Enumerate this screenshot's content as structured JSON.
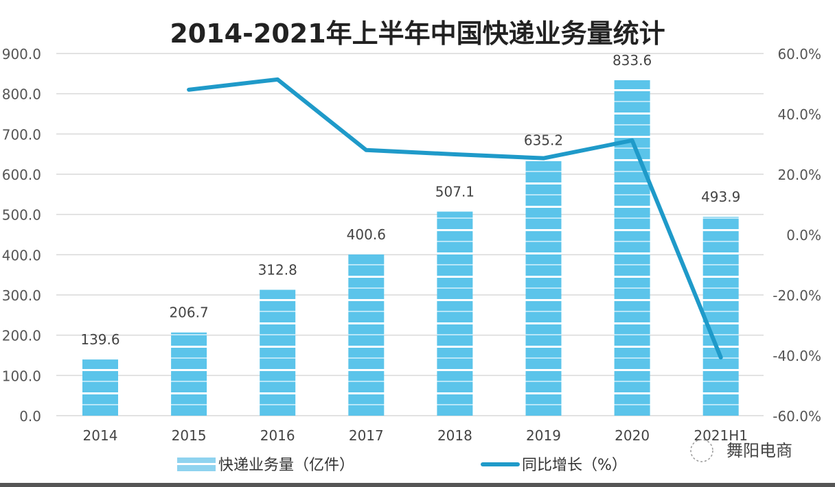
{
  "chart_data": {
    "type": "bar+line",
    "title": "2014-2021年上半年中国快递业务量统计",
    "categories": [
      "2014",
      "2015",
      "2016",
      "2017",
      "2018",
      "2019",
      "2020",
      "2021H1"
    ],
    "series": [
      {
        "name": "快递业务量（亿件）",
        "type": "bar",
        "axis": "left",
        "values": [
          139.6,
          206.7,
          312.8,
          400.6,
          507.1,
          635.2,
          833.6,
          493.9
        ],
        "data_labels": [
          "139.6",
          "206.7",
          "312.8",
          "400.6",
          "507.1",
          "635.2",
          "833.6",
          "493.9"
        ],
        "color": "#5bc4ea"
      },
      {
        "name": "同比增长（%）",
        "type": "line",
        "axis": "right",
        "values": [
          null,
          48.0,
          51.4,
          28.0,
          26.6,
          25.3,
          31.2,
          -40.7
        ],
        "color": "#1f9ac9"
      }
    ],
    "left_axis": {
      "range": [
        0,
        900
      ],
      "ticks": [
        "0.0",
        "100.0",
        "200.0",
        "300.0",
        "400.0",
        "500.0",
        "600.0",
        "700.0",
        "800.0",
        "900.0"
      ]
    },
    "right_axis": {
      "range": [
        -60,
        60
      ],
      "ticks": [
        "-60.0%",
        "-40.0%",
        "-20.0%",
        "0.0%",
        "20.0%",
        "40.0%",
        "60.0%"
      ]
    },
    "grid": true,
    "legend_position": "bottom"
  },
  "watermark": "舞阳电商"
}
